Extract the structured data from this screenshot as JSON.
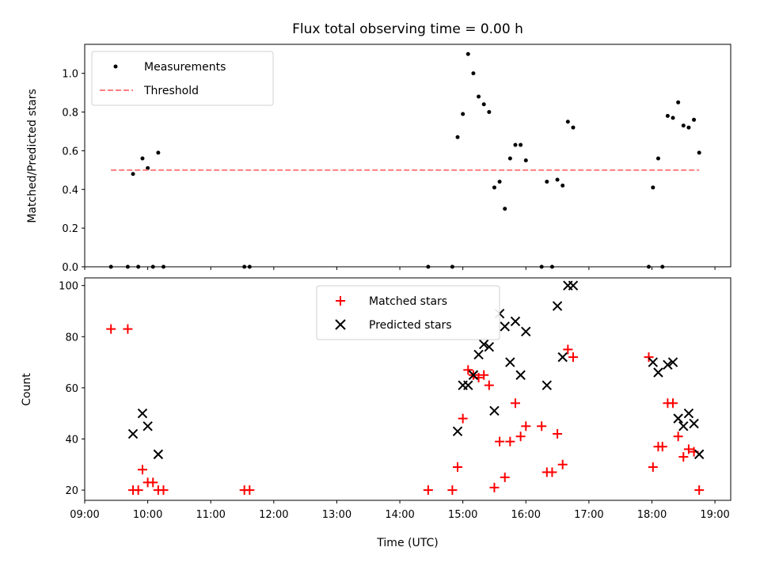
{
  "chart_data": [
    {
      "type": "scatter",
      "title": "Flux total observing time = 0.00 h",
      "ylabel": "Matched/Predicted stars",
      "xlabel": "",
      "x_ticks": [
        "09:00",
        "10:00",
        "11:00",
        "12:00",
        "13:00",
        "14:00",
        "15:00",
        "16:00",
        "17:00",
        "18:00",
        "19:00"
      ],
      "xlim": [
        "09:00",
        "19:15"
      ],
      "ylim": [
        0,
        1.15
      ],
      "y_ticks": [
        0.0,
        0.2,
        0.4,
        0.6,
        0.8,
        1.0
      ],
      "y_tick_labels": [
        "0.0",
        "0.2",
        "0.4",
        "0.6",
        "0.8",
        "1.0"
      ],
      "legend_position": "top-left",
      "series": [
        {
          "name": "Measurements",
          "marker": "dot",
          "color": "#000000",
          "points": [
            [
              "09:25",
              0.0
            ],
            [
              "09:41",
              0.0
            ],
            [
              "09:46",
              0.48
            ],
            [
              "09:51",
              0.0
            ],
            [
              "09:55",
              0.56
            ],
            [
              "10:00",
              0.51
            ],
            [
              "10:05",
              0.0
            ],
            [
              "10:10",
              0.59
            ],
            [
              "10:15",
              0.0
            ],
            [
              "11:32",
              0.0
            ],
            [
              "11:37",
              0.0
            ],
            [
              "14:27",
              0.0
            ],
            [
              "14:50",
              0.0
            ],
            [
              "14:55",
              0.67
            ],
            [
              "15:00",
              0.79
            ],
            [
              "15:05",
              1.1
            ],
            [
              "15:10",
              1.0
            ],
            [
              "15:15",
              0.88
            ],
            [
              "15:20",
              0.84
            ],
            [
              "15:25",
              0.8
            ],
            [
              "15:30",
              0.41
            ],
            [
              "15:35",
              0.44
            ],
            [
              "15:40",
              0.3
            ],
            [
              "15:45",
              0.56
            ],
            [
              "15:50",
              0.63
            ],
            [
              "15:55",
              0.63
            ],
            [
              "16:00",
              0.55
            ],
            [
              "16:15",
              0.0
            ],
            [
              "16:20",
              0.44
            ],
            [
              "16:25",
              0.0
            ],
            [
              "16:30",
              0.45
            ],
            [
              "16:35",
              0.42
            ],
            [
              "16:40",
              0.75
            ],
            [
              "16:45",
              0.72
            ],
            [
              "17:57",
              0.0
            ],
            [
              "18:01",
              0.41
            ],
            [
              "18:06",
              0.56
            ],
            [
              "18:10",
              0.0
            ],
            [
              "18:15",
              0.78
            ],
            [
              "18:20",
              0.77
            ],
            [
              "18:25",
              0.85
            ],
            [
              "18:30",
              0.73
            ],
            [
              "18:35",
              0.72
            ],
            [
              "18:40",
              0.76
            ],
            [
              "18:45",
              0.59
            ]
          ]
        },
        {
          "name": "Threshold",
          "marker": "dashed-line",
          "color": "#ff7f7f",
          "points": [
            [
              "09:25",
              0.5
            ],
            [
              "18:45",
              0.5
            ]
          ]
        }
      ]
    },
    {
      "type": "scatter",
      "title": "",
      "ylabel": "Count",
      "xlabel": "Time (UTC)",
      "x_ticks": [
        "09:00",
        "10:00",
        "11:00",
        "12:00",
        "13:00",
        "14:00",
        "15:00",
        "16:00",
        "17:00",
        "18:00",
        "19:00"
      ],
      "xlim": [
        "09:00",
        "19:15"
      ],
      "ylim": [
        16,
        103
      ],
      "y_ticks": [
        20,
        40,
        60,
        80,
        100
      ],
      "legend_position": "top-center",
      "series": [
        {
          "name": "Matched stars",
          "marker": "plus",
          "color": "#ff0000",
          "points": [
            [
              "09:25",
              83
            ],
            [
              "09:41",
              83
            ],
            [
              "09:46",
              20
            ],
            [
              "09:51",
              20
            ],
            [
              "09:55",
              28
            ],
            [
              "10:00",
              23
            ],
            [
              "10:05",
              23
            ],
            [
              "10:10",
              20
            ],
            [
              "10:15",
              20
            ],
            [
              "11:32",
              20
            ],
            [
              "11:37",
              20
            ],
            [
              "14:27",
              20
            ],
            [
              "14:50",
              20
            ],
            [
              "14:55",
              29
            ],
            [
              "15:00",
              48
            ],
            [
              "15:05",
              67
            ],
            [
              "15:10",
              65
            ],
            [
              "15:15",
              64
            ],
            [
              "15:20",
              65
            ],
            [
              "15:25",
              61
            ],
            [
              "15:30",
              21
            ],
            [
              "15:35",
              39
            ],
            [
              "15:40",
              25
            ],
            [
              "15:45",
              39
            ],
            [
              "15:50",
              54
            ],
            [
              "15:55",
              41
            ],
            [
              "16:00",
              45
            ],
            [
              "16:15",
              45
            ],
            [
              "16:20",
              27
            ],
            [
              "16:25",
              27
            ],
            [
              "16:30",
              42
            ],
            [
              "16:35",
              30
            ],
            [
              "16:40",
              75
            ],
            [
              "16:45",
              72
            ],
            [
              "17:57",
              72
            ],
            [
              "18:01",
              29
            ],
            [
              "18:06",
              37
            ],
            [
              "18:10",
              37
            ],
            [
              "18:15",
              54
            ],
            [
              "18:20",
              54
            ],
            [
              "18:25",
              41
            ],
            [
              "18:30",
              33
            ],
            [
              "18:35",
              36
            ],
            [
              "18:40",
              35
            ],
            [
              "18:45",
              20
            ]
          ]
        },
        {
          "name": "Predicted stars",
          "marker": "x",
          "color": "#000000",
          "points": [
            [
              "09:46",
              42
            ],
            [
              "09:55",
              50
            ],
            [
              "10:00",
              45
            ],
            [
              "10:10",
              34
            ],
            [
              "14:55",
              43
            ],
            [
              "15:00",
              61
            ],
            [
              "15:05",
              61
            ],
            [
              "15:10",
              65
            ],
            [
              "15:15",
              73
            ],
            [
              "15:20",
              77
            ],
            [
              "15:25",
              76
            ],
            [
              "15:30",
              51
            ],
            [
              "15:35",
              89
            ],
            [
              "15:40",
              84
            ],
            [
              "15:45",
              70
            ],
            [
              "15:50",
              86
            ],
            [
              "15:55",
              65
            ],
            [
              "16:00",
              82
            ],
            [
              "16:20",
              61
            ],
            [
              "16:30",
              92
            ],
            [
              "16:35",
              72
            ],
            [
              "16:40",
              100
            ],
            [
              "16:45",
              100
            ],
            [
              "18:01",
              70
            ],
            [
              "18:06",
              66
            ],
            [
              "18:15",
              69
            ],
            [
              "18:20",
              70
            ],
            [
              "18:25",
              48
            ],
            [
              "18:30",
              45
            ],
            [
              "18:35",
              50
            ],
            [
              "18:40",
              46
            ],
            [
              "18:45",
              34
            ]
          ]
        }
      ]
    }
  ]
}
